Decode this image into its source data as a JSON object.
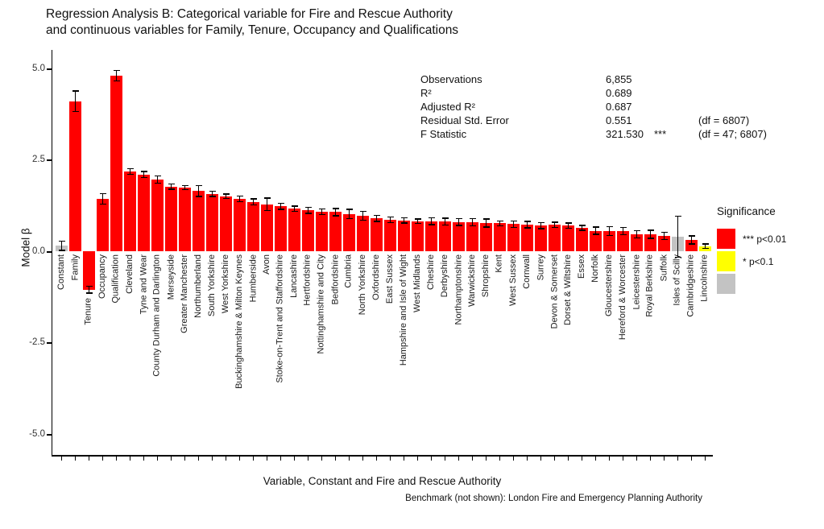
{
  "title": {
    "line1": "Regression Analysis B: Categorical variable for Fire and Rescue Authority",
    "line2": "and continuous variables for Family, Tenure, Occupancy and Qualifications"
  },
  "stats": {
    "rows": [
      {
        "label": "Observations",
        "value": "6,855",
        "stars": "",
        "df": ""
      },
      {
        "label": "R²",
        "value": "0.689",
        "stars": "",
        "df": ""
      },
      {
        "label": "Adjusted R²",
        "value": "0.687",
        "stars": "",
        "df": ""
      },
      {
        "label": "Residual Std. Error",
        "value": "0.551",
        "stars": "",
        "df": "(df = 6807)"
      },
      {
        "label": "F Statistic",
        "value": "321.530",
        "stars": "***",
        "df": "(df = 47; 6807)"
      }
    ]
  },
  "y_axis": {
    "label": "Model β",
    "ticks": [
      "5.0",
      "2.5",
      "0.0",
      "-2.5",
      "-5.0"
    ]
  },
  "x_axis": {
    "title": "Variable, Constant and Fire and Rescue Authority",
    "caption": "Benchmark (not shown): London Fire and Emergency Planning Authority"
  },
  "legend": {
    "title": "Significance",
    "colors": {
      "p001": "#FF0000",
      "p01": "#FFFF00",
      "ns": "#C3C3C3"
    },
    "items": [
      {
        "key": "p001",
        "label": "*** p<0.01",
        "color": "#FF0000"
      },
      {
        "key": "p01",
        "label": "* p<0.1",
        "color": "#FFFF00"
      },
      {
        "key": "ns",
        "label": "",
        "color": "#C3C3C3"
      }
    ]
  },
  "chart_data": {
    "type": "bar",
    "title": "Regression Analysis B",
    "xlabel": "Variable, Constant and Fire and Rescue Authority",
    "ylabel": "Model β",
    "ylim": [
      -5.5,
      5.5
    ],
    "grid": false,
    "legend_position": "right",
    "error_bars": true,
    "bars": [
      {
        "label": "Constant",
        "value": 0.15,
        "error": 0.13,
        "sig": "ns"
      },
      {
        "label": "Family",
        "value": 4.1,
        "error": 0.28,
        "sig": "p001"
      },
      {
        "label": "Tenure",
        "value": -1.05,
        "error": 0.09,
        "sig": "p001"
      },
      {
        "label": "Occupancy",
        "value": 1.43,
        "error": 0.14,
        "sig": "p001"
      },
      {
        "label": "Qualification",
        "value": 4.8,
        "error": 0.14,
        "sig": "p001"
      },
      {
        "label": "Cleveland",
        "value": 2.18,
        "error": 0.08,
        "sig": "p001"
      },
      {
        "label": "Tyne and Wear",
        "value": 2.1,
        "error": 0.08,
        "sig": "p001"
      },
      {
        "label": "County Durham and Darlington",
        "value": 1.96,
        "error": 0.1,
        "sig": "p001"
      },
      {
        "label": "Merseyside",
        "value": 1.77,
        "error": 0.07,
        "sig": "p001"
      },
      {
        "label": "Greater Manchester",
        "value": 1.74,
        "error": 0.06,
        "sig": "p001"
      },
      {
        "label": "Northumberland",
        "value": 1.65,
        "error": 0.15,
        "sig": "p001"
      },
      {
        "label": "South Yorkshire",
        "value": 1.57,
        "error": 0.07,
        "sig": "p001"
      },
      {
        "label": "West Yorkshire",
        "value": 1.5,
        "error": 0.06,
        "sig": "p001"
      },
      {
        "label": "Buckinghamshire & Milton Keynes",
        "value": 1.43,
        "error": 0.08,
        "sig": "p001"
      },
      {
        "label": "Humberside",
        "value": 1.35,
        "error": 0.08,
        "sig": "p001"
      },
      {
        "label": "Avon",
        "value": 1.28,
        "error": 0.17,
        "sig": "p001"
      },
      {
        "label": "Stoke-on-Trent and Staffordshire",
        "value": 1.23,
        "error": 0.08,
        "sig": "p001"
      },
      {
        "label": "Lancashire",
        "value": 1.16,
        "error": 0.07,
        "sig": "p001"
      },
      {
        "label": "Hertfordshire",
        "value": 1.12,
        "error": 0.08,
        "sig": "p001"
      },
      {
        "label": "Nottinghamshire and City",
        "value": 1.08,
        "error": 0.08,
        "sig": "p001"
      },
      {
        "label": "Bedfordshire",
        "value": 1.07,
        "error": 0.1,
        "sig": "p001"
      },
      {
        "label": "Cumbria",
        "value": 1.02,
        "error": 0.13,
        "sig": "p001"
      },
      {
        "label": "North Yorkshire",
        "value": 0.97,
        "error": 0.12,
        "sig": "p001"
      },
      {
        "label": "Oxfordshire",
        "value": 0.9,
        "error": 0.08,
        "sig": "p001"
      },
      {
        "label": "East Sussex",
        "value": 0.86,
        "error": 0.08,
        "sig": "p001"
      },
      {
        "label": "Hampshire and Isle of Wight",
        "value": 0.84,
        "error": 0.07,
        "sig": "p001"
      },
      {
        "label": "West Midlands",
        "value": 0.82,
        "error": 0.06,
        "sig": "p001"
      },
      {
        "label": "Cheshire",
        "value": 0.82,
        "error": 0.09,
        "sig": "p001"
      },
      {
        "label": "Derbyshire",
        "value": 0.81,
        "error": 0.09,
        "sig": "p001"
      },
      {
        "label": "Northamptonshire",
        "value": 0.8,
        "error": 0.09,
        "sig": "p001"
      },
      {
        "label": "Warwickshire",
        "value": 0.79,
        "error": 0.1,
        "sig": "p001"
      },
      {
        "label": "Shropshire",
        "value": 0.77,
        "error": 0.11,
        "sig": "p001"
      },
      {
        "label": "Kent",
        "value": 0.76,
        "error": 0.07,
        "sig": "p001"
      },
      {
        "label": "West Sussex",
        "value": 0.74,
        "error": 0.09,
        "sig": "p001"
      },
      {
        "label": "Cornwall",
        "value": 0.73,
        "error": 0.09,
        "sig": "p001"
      },
      {
        "label": "Surrey",
        "value": 0.7,
        "error": 0.08,
        "sig": "p001"
      },
      {
        "label": "Devon & Somerset",
        "value": 0.72,
        "error": 0.07,
        "sig": "p001"
      },
      {
        "label": "Dorset & Wiltshire",
        "value": 0.7,
        "error": 0.07,
        "sig": "p001"
      },
      {
        "label": "Essex",
        "value": 0.64,
        "error": 0.07,
        "sig": "p001"
      },
      {
        "label": "Norfolk",
        "value": 0.56,
        "error": 0.1,
        "sig": "p001"
      },
      {
        "label": "Gloucestershire",
        "value": 0.55,
        "error": 0.12,
        "sig": "p001"
      },
      {
        "label": "Hereford & Worcester",
        "value": 0.55,
        "error": 0.1,
        "sig": "p001"
      },
      {
        "label": "Leicestershire",
        "value": 0.46,
        "error": 0.1,
        "sig": "p001"
      },
      {
        "label": "Royal Berkshire",
        "value": 0.46,
        "error": 0.11,
        "sig": "p001"
      },
      {
        "label": "Suffolk",
        "value": 0.42,
        "error": 0.1,
        "sig": "p001"
      },
      {
        "label": "Isles of Scilly",
        "value": 0.4,
        "error": 0.56,
        "sig": "ns"
      },
      {
        "label": "Cambridgeshire",
        "value": 0.31,
        "error": 0.11,
        "sig": "p001"
      },
      {
        "label": "Lincolnshire",
        "value": 0.14,
        "error": 0.06,
        "sig": "p01"
      }
    ]
  }
}
